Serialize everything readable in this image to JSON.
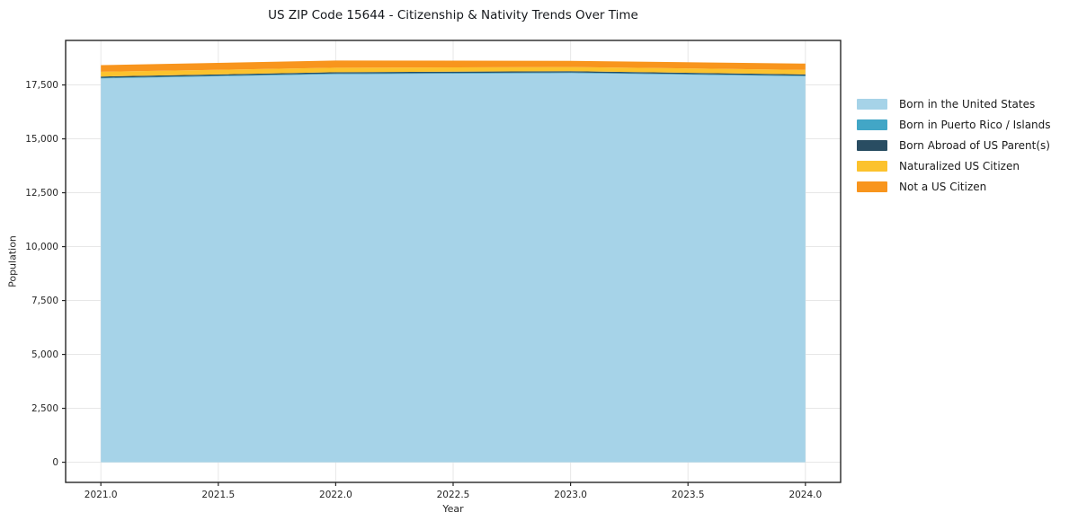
{
  "chart_data": {
    "type": "area",
    "stacked": true,
    "title": "US ZIP Code 15644 - Citizenship & Nativity Trends Over Time",
    "xlabel": "Year",
    "ylabel": "Population",
    "x": [
      2021,
      2022,
      2023,
      2024
    ],
    "series": [
      {
        "label": "Born in the United States",
        "color": "#a6d3e8",
        "values": [
          17800,
          18000,
          18050,
          17900
        ]
      },
      {
        "label": "Born in Puerto Rico / Islands",
        "color": "#42a6c6",
        "values": [
          30,
          30,
          30,
          30
        ]
      },
      {
        "label": "Born Abroad of US Parent(s)",
        "color": "#294d62",
        "values": [
          60,
          60,
          60,
          60
        ]
      },
      {
        "label": "Naturalized US Citizen",
        "color": "#fcc22d",
        "values": [
          220,
          210,
          190,
          210
        ]
      },
      {
        "label": "Not a US Citizen",
        "color": "#f8951d",
        "values": [
          310,
          330,
          290,
          290
        ]
      }
    ],
    "totals": [
      18420,
      18630,
      18620,
      18490
    ],
    "xlim": [
      2020.85,
      2024.15
    ],
    "ylim": [
      -935,
      19565
    ],
    "xticks": [
      {
        "value": 2021.0,
        "label": "2021.0"
      },
      {
        "value": 2021.5,
        "label": "2021.5"
      },
      {
        "value": 2022.0,
        "label": "2022.0"
      },
      {
        "value": 2022.5,
        "label": "2022.5"
      },
      {
        "value": 2023.0,
        "label": "2023.0"
      },
      {
        "value": 2023.5,
        "label": "2023.5"
      },
      {
        "value": 2024.0,
        "label": "2024.0"
      }
    ],
    "yticks": [
      {
        "value": 0,
        "label": "0"
      },
      {
        "value": 2500,
        "label": "2,500"
      },
      {
        "value": 5000,
        "label": "5,000"
      },
      {
        "value": 7500,
        "label": "7,500"
      },
      {
        "value": 10000,
        "label": "10,000"
      },
      {
        "value": 12500,
        "label": "12,500"
      },
      {
        "value": 15000,
        "label": "15,000"
      },
      {
        "value": 17500,
        "label": "17,500"
      }
    ],
    "grid": true,
    "grid_color": "#e7e7e7",
    "axis_color": "#262626",
    "legend_position": "right"
  }
}
